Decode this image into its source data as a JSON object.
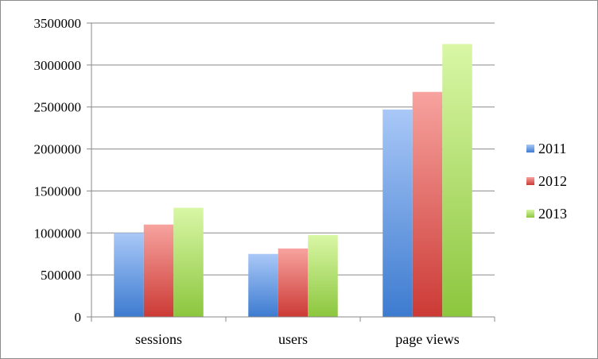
{
  "chart_data": {
    "type": "bar",
    "title": "",
    "xlabel": "",
    "ylabel": "",
    "categories": [
      "sessions",
      "users",
      "page views"
    ],
    "series": [
      {
        "name": "2011",
        "values": [
          1000000,
          750000,
          2470000
        ],
        "color": "#4f81bd"
      },
      {
        "name": "2012",
        "values": [
          1100000,
          815000,
          2680000
        ],
        "color": "#c0504d"
      },
      {
        "name": "2013",
        "values": [
          1300000,
          975000,
          3250000
        ],
        "color": "#9bbb59"
      }
    ],
    "ylim": [
      0,
      3500000
    ],
    "yticks": [
      "0",
      "500000",
      "1000000",
      "1500000",
      "2000000",
      "2500000",
      "3000000",
      "3500000"
    ],
    "grid": true,
    "legend_position": "right"
  }
}
